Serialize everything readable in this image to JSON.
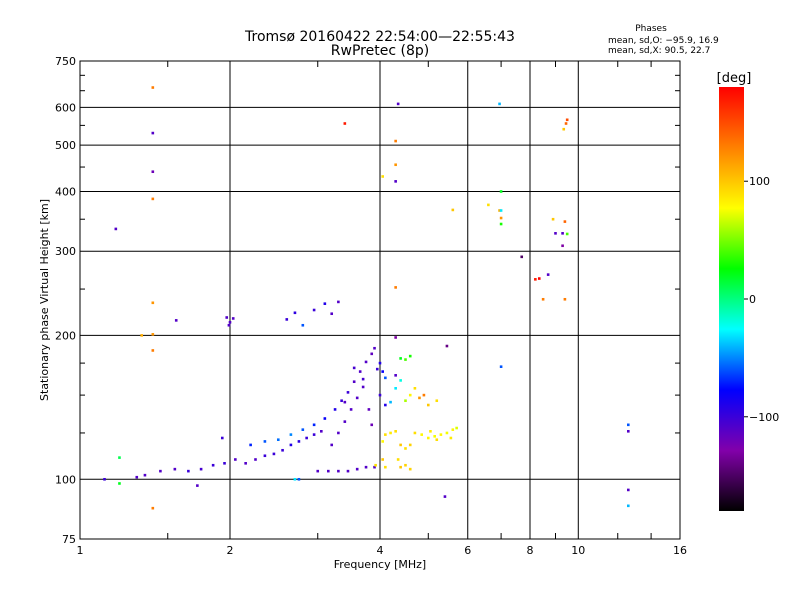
{
  "chart_data": {
    "type": "scatter",
    "title": "Tromsø 20160422 22:54:00—22:55:43",
    "subtitle": "RwPretec (8p)",
    "xlabel": "Frequency [MHz]",
    "ylabel": "Stationary phase Virtual Height [km]",
    "x_scale": "log",
    "y_scale": "log",
    "xlim": [
      1,
      16
    ],
    "ylim": [
      75,
      750
    ],
    "x_ticks": [
      1,
      2,
      4,
      6,
      8,
      10,
      16
    ],
    "x_tick_labels": [
      "1",
      "2",
      "4",
      "6",
      "8",
      "10",
      "16"
    ],
    "y_ticks": [
      75,
      100,
      200,
      300,
      400,
      500,
      600,
      750
    ],
    "y_tick_labels": [
      "75",
      "100",
      "200",
      "300",
      "400",
      "500",
      "600",
      "750"
    ],
    "grid": true,
    "stats": {
      "heading": "Phases",
      "line_o": "mean, sd,O: −95.9, 16.9",
      "line_x": "mean, sd,X:  90.5, 22.7"
    },
    "colorbar": {
      "label": "[deg]",
      "range": [
        -180,
        180
      ],
      "ticks": [
        -100,
        0,
        100
      ],
      "tick_labels": [
        "−100",
        "0",
        "100"
      ]
    },
    "colors": {
      "low": "#000000",
      "mid": "#00ff00",
      "high": "#ff0000"
    },
    "points": [
      [
        1.12,
        100,
        -100
      ],
      [
        1.2,
        98,
        20
      ],
      [
        1.2,
        111,
        10
      ],
      [
        1.18,
        334,
        -110
      ],
      [
        1.4,
        660,
        130
      ],
      [
        1.4,
        530,
        -110
      ],
      [
        1.4,
        440,
        -120
      ],
      [
        1.4,
        386,
        130
      ],
      [
        1.4,
        234,
        120
      ],
      [
        1.4,
        201,
        120
      ],
      [
        1.4,
        186,
        130
      ],
      [
        1.4,
        87,
        130
      ],
      [
        1.33,
        200,
        110
      ],
      [
        1.56,
        215,
        -110
      ],
      [
        1.3,
        101,
        -110
      ],
      [
        1.35,
        102,
        -110
      ],
      [
        1.45,
        104,
        -110
      ],
      [
        1.55,
        105,
        -110
      ],
      [
        1.65,
        104,
        -100
      ],
      [
        1.75,
        105,
        -105
      ],
      [
        1.85,
        107,
        -100
      ],
      [
        1.95,
        108,
        -100
      ],
      [
        1.72,
        97,
        -110
      ],
      [
        1.93,
        122,
        -100
      ],
      [
        1.97,
        218,
        -110
      ],
      [
        2.0,
        213,
        -110
      ],
      [
        2.03,
        217,
        -110
      ],
      [
        1.99,
        210,
        -110
      ],
      [
        2.6,
        216,
        -100
      ],
      [
        2.7,
        223,
        -95
      ],
      [
        2.8,
        210,
        -60
      ],
      [
        2.95,
        226,
        -100
      ],
      [
        3.1,
        233,
        -90
      ],
      [
        3.2,
        222,
        -110
      ],
      [
        3.3,
        235,
        -110
      ],
      [
        2.05,
        110,
        -110
      ],
      [
        2.15,
        108,
        -110
      ],
      [
        2.25,
        110,
        -110
      ],
      [
        2.35,
        112,
        -100
      ],
      [
        2.45,
        113,
        -100
      ],
      [
        2.55,
        115,
        -100
      ],
      [
        2.65,
        118,
        -90
      ],
      [
        2.75,
        120,
        -95
      ],
      [
        2.85,
        122,
        -100
      ],
      [
        2.95,
        124,
        -100
      ],
      [
        3.05,
        126,
        -110
      ],
      [
        2.2,
        118,
        -70
      ],
      [
        2.35,
        120,
        -60
      ],
      [
        2.5,
        121,
        -55
      ],
      [
        2.65,
        124,
        -50
      ],
      [
        2.8,
        127,
        -60
      ],
      [
        2.95,
        130,
        -70
      ],
      [
        3.1,
        134,
        -80
      ],
      [
        3.25,
        140,
        -90
      ],
      [
        3.35,
        146,
        -100
      ],
      [
        3.45,
        152,
        -100
      ],
      [
        3.55,
        160,
        -110
      ],
      [
        3.65,
        168,
        -110
      ],
      [
        3.75,
        176,
        -110
      ],
      [
        3.85,
        183,
        -115
      ],
      [
        3.9,
        188,
        -110
      ],
      [
        3.0,
        104,
        -110
      ],
      [
        3.15,
        104,
        -110
      ],
      [
        3.3,
        104,
        -110
      ],
      [
        3.45,
        104,
        -110
      ],
      [
        3.6,
        105,
        -110
      ],
      [
        3.75,
        106,
        -110
      ],
      [
        3.9,
        106,
        -110
      ],
      [
        3.2,
        118,
        -110
      ],
      [
        3.3,
        125,
        -110
      ],
      [
        3.4,
        132,
        -110
      ],
      [
        3.5,
        140,
        -110
      ],
      [
        3.6,
        148,
        -110
      ],
      [
        3.7,
        156,
        -110
      ],
      [
        3.8,
        140,
        -115
      ],
      [
        3.85,
        130,
        -120
      ],
      [
        3.4,
        145,
        -110
      ],
      [
        3.55,
        171,
        -105
      ],
      [
        3.7,
        162,
        -105
      ],
      [
        2.75,
        100,
        -60
      ],
      [
        3.95,
        170,
        -100
      ],
      [
        4.0,
        175,
        -90
      ],
      [
        4.05,
        168,
        -80
      ],
      [
        4.1,
        163,
        -60
      ],
      [
        4.0,
        150,
        -100
      ],
      [
        4.1,
        143,
        -90
      ],
      [
        4.2,
        145,
        -40
      ],
      [
        4.3,
        155,
        -30
      ],
      [
        4.4,
        161,
        -20
      ],
      [
        4.5,
        146,
        60
      ],
      [
        4.6,
        150,
        80
      ],
      [
        4.7,
        155,
        90
      ],
      [
        4.8,
        148,
        120
      ],
      [
        4.9,
        150,
        130
      ],
      [
        5.0,
        143,
        100
      ],
      [
        5.2,
        146,
        90
      ],
      [
        4.3,
        165,
        -110
      ],
      [
        4.4,
        179,
        20
      ],
      [
        4.5,
        178,
        40
      ],
      [
        4.6,
        181,
        30
      ],
      [
        4.05,
        120,
        80
      ],
      [
        4.1,
        124,
        90
      ],
      [
        4.2,
        125,
        85
      ],
      [
        4.3,
        126,
        90
      ],
      [
        4.4,
        118,
        100
      ],
      [
        4.5,
        116,
        90
      ],
      [
        4.6,
        118,
        95
      ],
      [
        4.7,
        125,
        90
      ],
      [
        4.85,
        124,
        80
      ],
      [
        5.0,
        122,
        80
      ],
      [
        5.15,
        123,
        75
      ],
      [
        5.3,
        124,
        80
      ],
      [
        5.45,
        125,
        75
      ],
      [
        5.6,
        127,
        80
      ],
      [
        5.7,
        128,
        70
      ],
      [
        5.55,
        122,
        85
      ],
      [
        5.2,
        121,
        90
      ],
      [
        5.05,
        126,
        85
      ],
      [
        3.92,
        107,
        90
      ],
      [
        4.05,
        110,
        100
      ],
      [
        4.1,
        106,
        90
      ],
      [
        4.4,
        106,
        100
      ],
      [
        4.5,
        107,
        95
      ],
      [
        4.6,
        105,
        95
      ],
      [
        4.35,
        110,
        90
      ],
      [
        4.3,
        198,
        -130
      ],
      [
        4.3,
        252,
        130
      ],
      [
        4.3,
        420,
        -110
      ],
      [
        4.3,
        455,
        120
      ],
      [
        4.3,
        510,
        130
      ],
      [
        4.35,
        610,
        -110
      ],
      [
        4.05,
        430,
        90
      ],
      [
        5.45,
        190,
        -140
      ],
      [
        5.4,
        92,
        -110
      ],
      [
        5.6,
        366,
        100
      ],
      [
        6.6,
        375,
        90
      ],
      [
        6.95,
        365,
        110
      ],
      [
        7.0,
        400,
        20
      ],
      [
        7.0,
        365,
        -30
      ],
      [
        7.0,
        352,
        120
      ],
      [
        7.0,
        342,
        30
      ],
      [
        6.95,
        610,
        -40
      ],
      [
        7.0,
        172,
        -60
      ],
      [
        7.7,
        292,
        -150
      ],
      [
        8.2,
        262,
        170
      ],
      [
        8.35,
        263,
        180
      ],
      [
        8.5,
        238,
        130
      ],
      [
        8.7,
        268,
        -110
      ],
      [
        8.9,
        350,
        100
      ],
      [
        9.0,
        327,
        -110
      ],
      [
        9.3,
        327,
        -110
      ],
      [
        9.4,
        346,
        140
      ],
      [
        9.5,
        326,
        40
      ],
      [
        9.3,
        308,
        -130
      ],
      [
        9.4,
        238,
        130
      ],
      [
        9.45,
        555,
        140
      ],
      [
        9.5,
        565,
        150
      ],
      [
        9.35,
        540,
        100
      ],
      [
        12.6,
        130,
        -60
      ],
      [
        12.6,
        126,
        -110
      ],
      [
        12.6,
        95,
        -110
      ],
      [
        12.6,
        88,
        -40
      ],
      [
        3.4,
        555,
        170
      ],
      [
        2.7,
        100,
        -30
      ]
    ]
  }
}
